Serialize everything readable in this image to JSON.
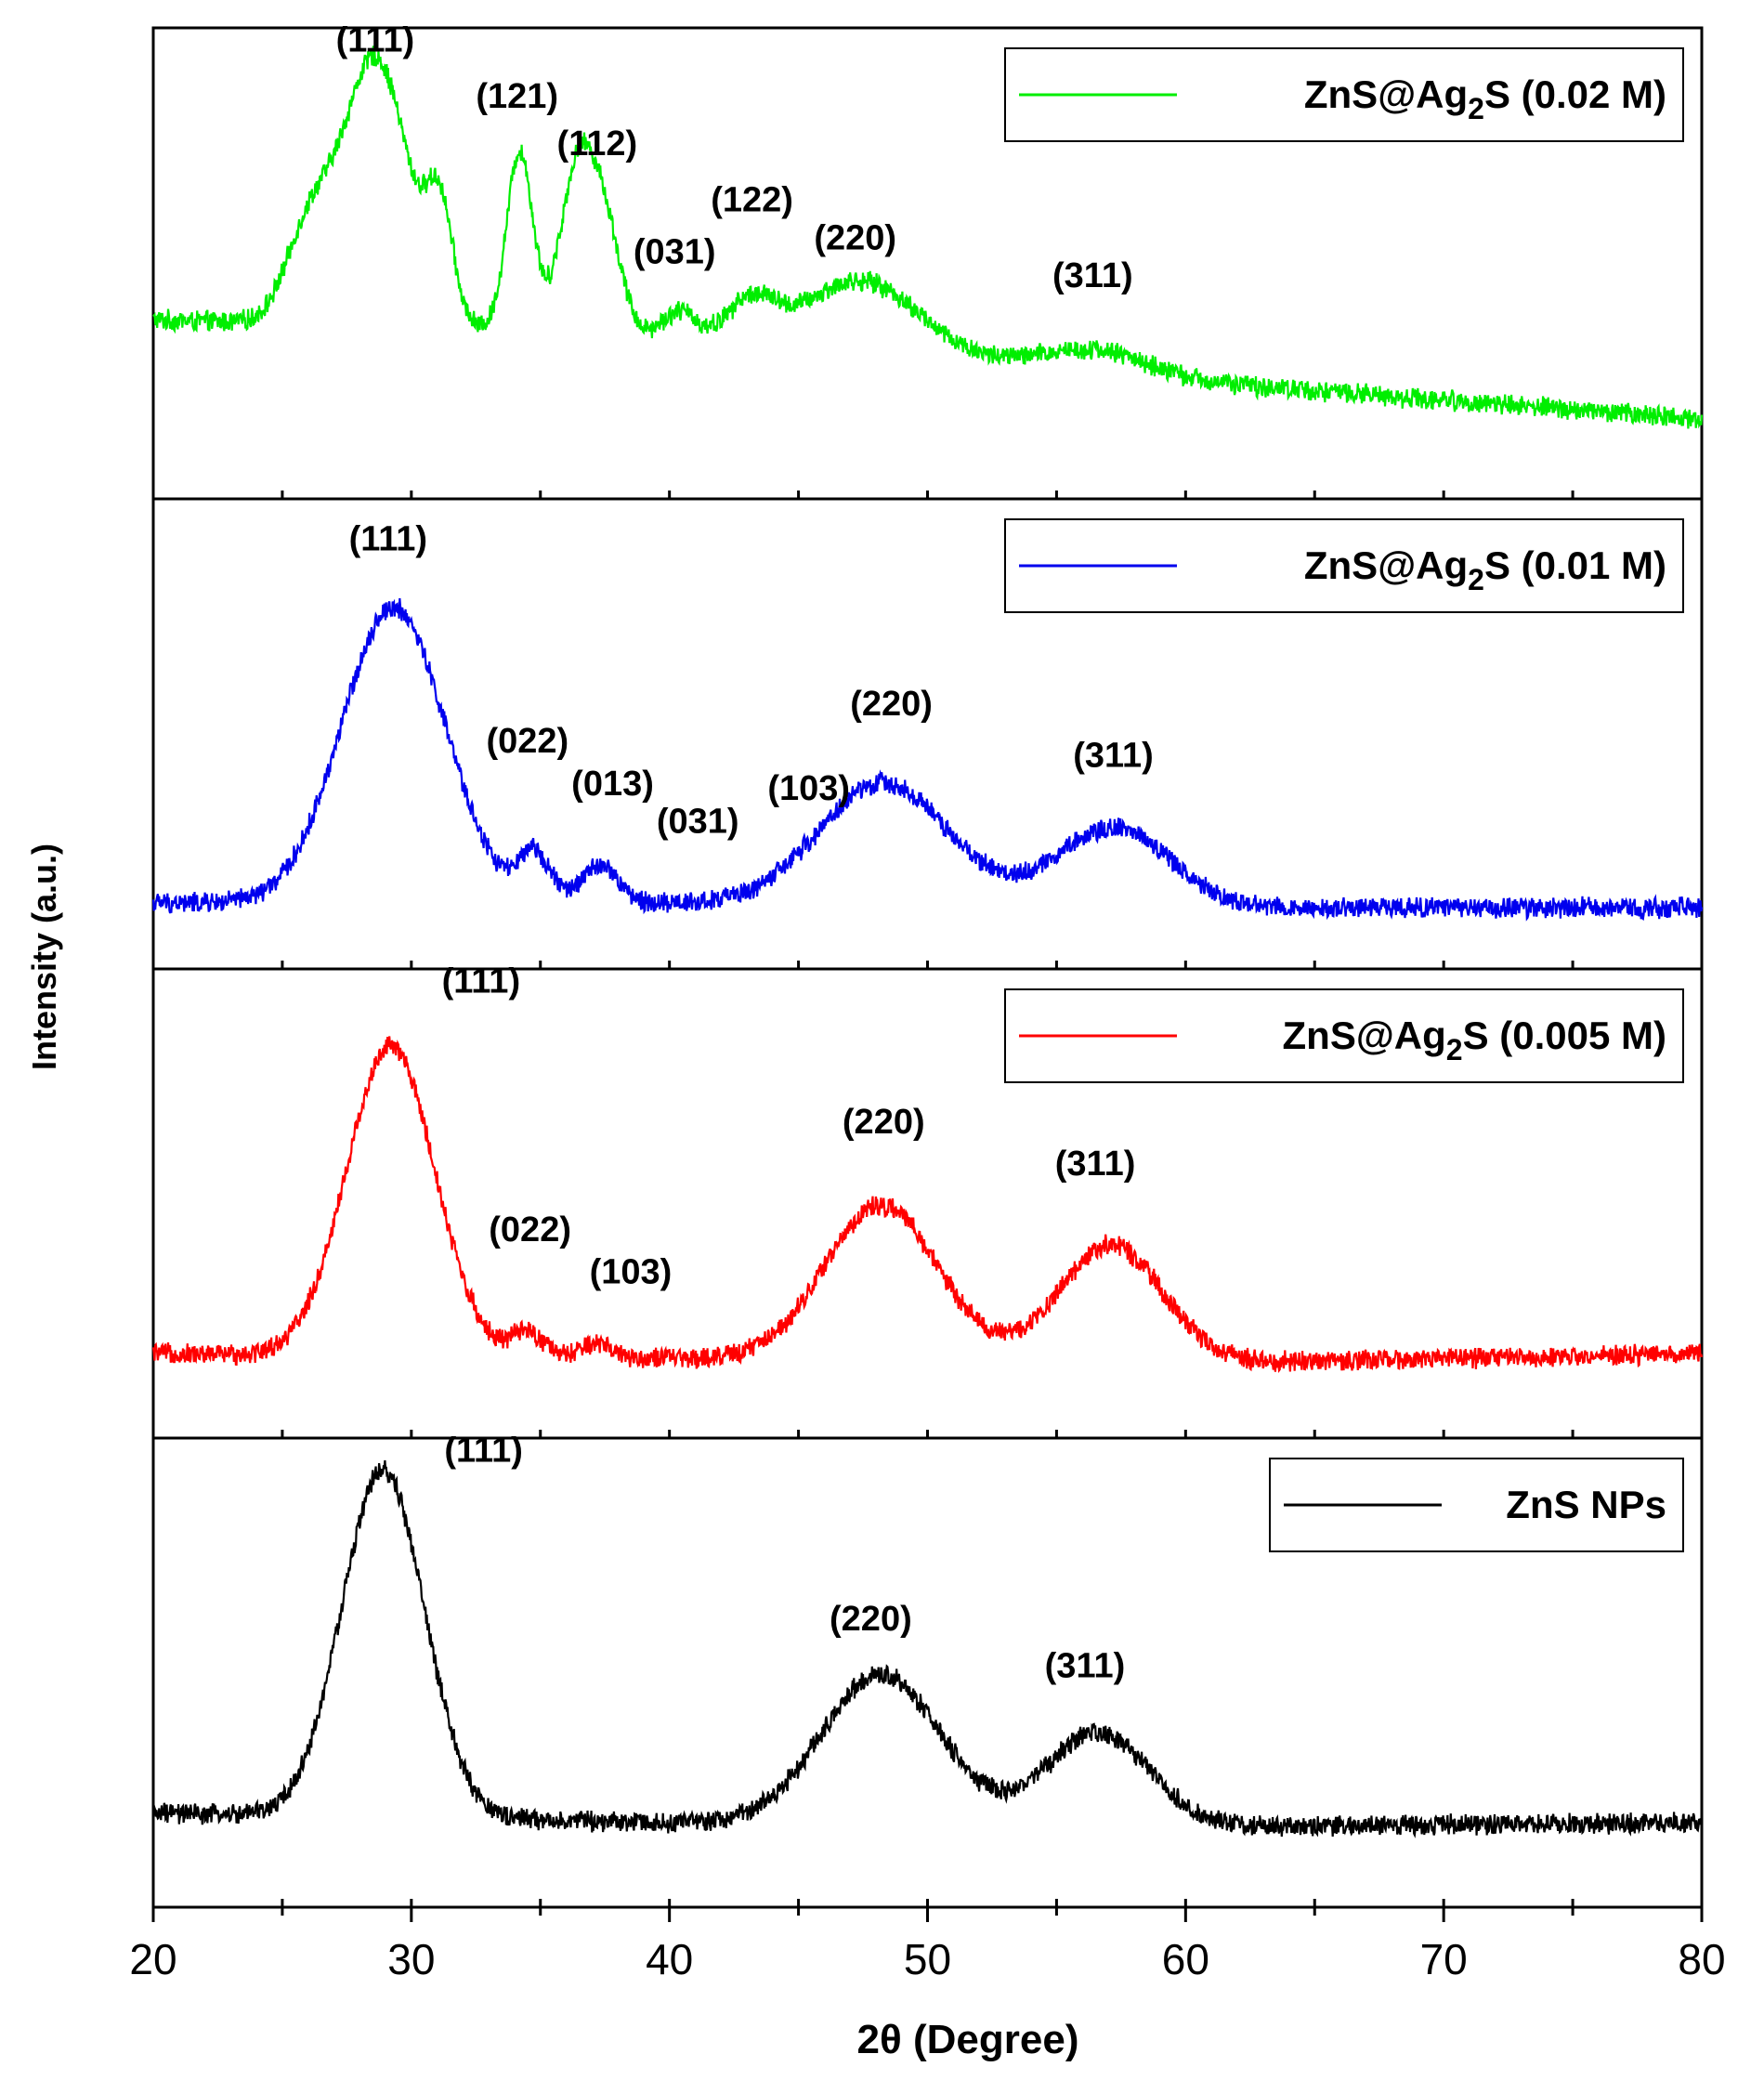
{
  "chart_data": {
    "type": "line",
    "title": "",
    "xlabel": "2θ (Degree)",
    "ylabel": "Intensity (a.u.)",
    "xlim": [
      20,
      80
    ],
    "ylim": [
      0,
      1
    ],
    "x_ticks": [
      "20",
      "30",
      "40",
      "50",
      "60",
      "70",
      "80"
    ],
    "grid": false,
    "legend_position": "top-right of each panel",
    "panels": [
      {
        "name": "ZnS@Ag2S (0.02 M)",
        "legend_main": "ZnS@Ag",
        "legend_sub": "2",
        "legend_tail": "S (0.02 M)",
        "color": "#00ee00",
        "baseline": [
          0.38,
          0.35,
          0.25,
          0.17
        ],
        "noise": 0.025,
        "peaks": [
          [
            26,
            0.18,
            0.9
          ],
          [
            28.6,
            0.57,
            1.3
          ],
          [
            31.1,
            0.22,
            0.5
          ],
          [
            34.2,
            0.38,
            0.5
          ],
          [
            36.5,
            0.36,
            0.7
          ],
          [
            37.6,
            0.17,
            0.6
          ],
          [
            40.4,
            0.05,
            0.6
          ],
          [
            43.2,
            0.08,
            0.9
          ],
          [
            47.5,
            0.15,
            2.2
          ],
          [
            56.5,
            0.05,
            2.0
          ]
        ],
        "labels": [
          {
            "text": "(111)",
            "x": 28.6,
            "y": 0.95
          },
          {
            "text": "(121)",
            "x": 34.1,
            "y": 0.83
          },
          {
            "text": "(112)",
            "x": 37.2,
            "y": 0.73
          },
          {
            "text": "(031)",
            "x": 40.2,
            "y": 0.5
          },
          {
            "text": "(122)",
            "x": 43.2,
            "y": 0.61
          },
          {
            "text": "(220)",
            "x": 47.2,
            "y": 0.53
          },
          {
            "text": "(311)",
            "x": 56.4,
            "y": 0.45
          }
        ]
      },
      {
        "name": "ZnS@Ag2S (0.01 M)",
        "legend_main": "ZnS@Ag",
        "legend_sub": "2",
        "legend_tail": "S (0.01 M)",
        "color": "#0000ee",
        "baseline": [
          0.14,
          0.14,
          0.13,
          0.13
        ],
        "noise": 0.025,
        "peaks": [
          [
            29.3,
            0.63,
            2.0
          ],
          [
            34.8,
            0.1,
            0.6
          ],
          [
            37.3,
            0.08,
            0.7
          ],
          [
            48.3,
            0.26,
            2.5
          ],
          [
            57.2,
            0.17,
            2.2
          ]
        ],
        "labels": [
          {
            "text": "(111)",
            "x": 29.1,
            "y": 0.89
          },
          {
            "text": "(022)",
            "x": 34.5,
            "y": 0.46
          },
          {
            "text": "(013)",
            "x": 37.8,
            "y": 0.37
          },
          {
            "text": "(031)",
            "x": 41.1,
            "y": 0.29
          },
          {
            "text": "(103)",
            "x": 45.4,
            "y": 0.36
          },
          {
            "text": "(220)",
            "x": 48.6,
            "y": 0.54
          },
          {
            "text": "(311)",
            "x": 57.2,
            "y": 0.43
          }
        ]
      },
      {
        "name": "ZnS@Ag2S (0.005 M)",
        "legend_main": "ZnS@Ag",
        "legend_sub": "2",
        "legend_tail": "S (0.005 M)",
        "color": "#ff0000",
        "baseline": [
          0.18,
          0.17,
          0.16,
          0.18
        ],
        "noise": 0.025,
        "peaks": [
          [
            29.2,
            0.66,
            1.7
          ],
          [
            34.5,
            0.05,
            0.6
          ],
          [
            37.2,
            0.03,
            0.6
          ],
          [
            48.2,
            0.33,
            2.2
          ],
          [
            57.1,
            0.25,
            2.0
          ]
        ],
        "labels": [
          {
            "text": "(111)",
            "x": 32.7,
            "y": 0.95
          },
          {
            "text": "(022)",
            "x": 34.6,
            "y": 0.42
          },
          {
            "text": "(103)",
            "x": 38.5,
            "y": 0.33
          },
          {
            "text": "(220)",
            "x": 48.3,
            "y": 0.65
          },
          {
            "text": "(311)",
            "x": 56.5,
            "y": 0.56
          }
        ]
      },
      {
        "name": "ZnS NPs",
        "legend_main": "ZnS NPs",
        "legend_sub": "",
        "legend_tail": "",
        "color": "#000000",
        "baseline": [
          0.2,
          0.18,
          0.17,
          0.18
        ],
        "noise": 0.025,
        "peaks": [
          [
            28.9,
            0.74,
            1.6
          ],
          [
            48.2,
            0.32,
            2.3
          ],
          [
            56.6,
            0.2,
            2.0
          ]
        ],
        "labels": [
          {
            "text": "(111)",
            "x": 32.8,
            "y": 0.95
          },
          {
            "text": "(220)",
            "x": 47.8,
            "y": 0.59
          },
          {
            "text": "(311)",
            "x": 56.1,
            "y": 0.49
          }
        ]
      }
    ]
  }
}
